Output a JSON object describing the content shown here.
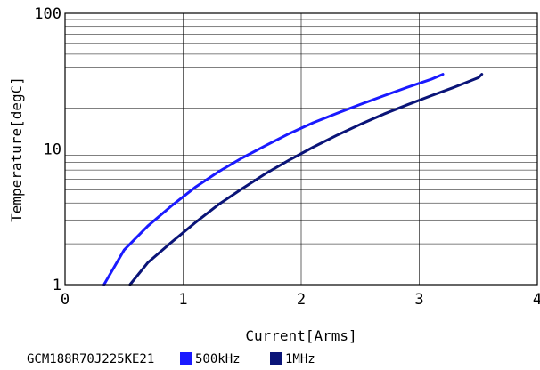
{
  "chart_data": {
    "type": "line",
    "title": "",
    "xlabel": "Current[Arms]",
    "ylabel": "Temperature[degC]",
    "xlim": [
      0,
      4
    ],
    "ylim": [
      1,
      100
    ],
    "yscale": "log",
    "grid": true,
    "x_ticks": [
      "0",
      "1",
      "2",
      "3",
      "4"
    ],
    "y_ticks": [
      "1",
      "10",
      "100"
    ],
    "legend_placement": "bottom",
    "part_number": "GCM188R70J225KE21",
    "series": [
      {
        "name": "500kHz",
        "color": "#1a1aff",
        "x": [
          0.33,
          0.5,
          0.7,
          0.9,
          1.1,
          1.3,
          1.5,
          1.7,
          1.9,
          2.1,
          2.3,
          2.5,
          2.7,
          2.9,
          3.1,
          3.2
        ],
        "y": [
          1.0,
          1.8,
          2.7,
          3.8,
          5.2,
          6.8,
          8.6,
          10.6,
          13.0,
          15.6,
          18.3,
          21.3,
          24.7,
          28.5,
          32.6,
          35.5
        ]
      },
      {
        "name": "1MHz",
        "color": "#0a1478",
        "x": [
          0.55,
          0.7,
          0.9,
          1.1,
          1.3,
          1.5,
          1.7,
          1.9,
          2.1,
          2.3,
          2.5,
          2.7,
          2.9,
          3.1,
          3.3,
          3.5,
          3.53
        ],
        "y": [
          1.0,
          1.45,
          2.05,
          2.85,
          3.9,
          5.1,
          6.6,
          8.3,
          10.3,
          12.6,
          15.2,
          18.1,
          21.2,
          24.7,
          28.6,
          33.5,
          35.5
        ]
      }
    ]
  }
}
